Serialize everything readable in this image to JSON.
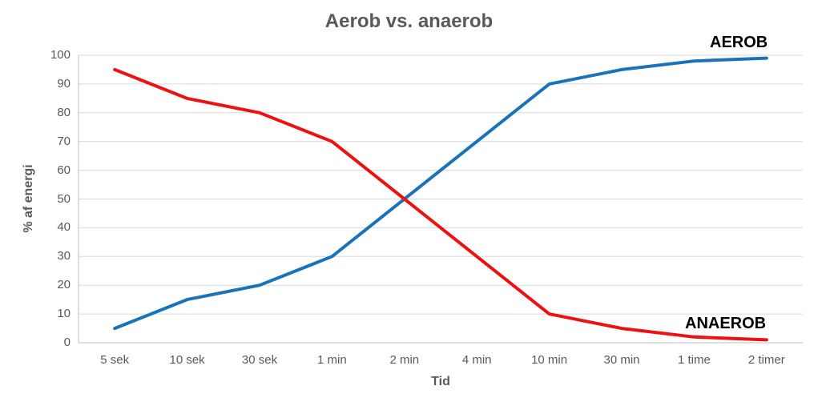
{
  "title": "Aerob vs. anaerob",
  "x_axis": {
    "title": "Tid"
  },
  "y_axis": {
    "title": "% af energi"
  },
  "series_labels": {
    "aerob": "AEROB",
    "anaerob": "ANAEROB"
  },
  "colors": {
    "aerob_line": "#1a73b8",
    "anaerob_line": "#ee1111",
    "title_text": "#595959",
    "tick_text": "#595959",
    "gridline": "#d9d9d9",
    "axis_line": "#c0c0c0"
  },
  "chart_data": {
    "type": "line",
    "title": "Aerob vs. anaerob",
    "xlabel": "Tid",
    "ylabel": "% af energi",
    "categories": [
      "5 sek",
      "10 sek",
      "30 sek",
      "1 min",
      "2 min",
      "4 min",
      "10 min",
      "30 min",
      "1 time",
      "2 timer"
    ],
    "series": [
      {
        "name": "AEROB",
        "color": "#1a73b8",
        "values": [
          5,
          15,
          20,
          30,
          50,
          70,
          90,
          95,
          98,
          99
        ]
      },
      {
        "name": "ANAEROB",
        "color": "#ee1111",
        "values": [
          95,
          85,
          80,
          70,
          50,
          30,
          10,
          5,
          2,
          1
        ]
      }
    ],
    "ylim": [
      0,
      100
    ],
    "y_ticks": [
      0,
      10,
      20,
      30,
      40,
      50,
      60,
      70,
      80,
      90,
      100
    ],
    "grid": true,
    "legend_position": "inline-end-labels"
  }
}
